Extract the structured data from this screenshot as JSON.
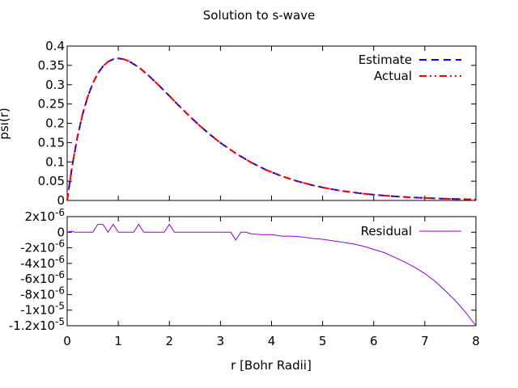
{
  "chart_data": [
    {
      "type": "line",
      "title": "Solution to s-wave",
      "xlabel": "",
      "ylabel": "psi(r)",
      "xlim": [
        0,
        8
      ],
      "ylim": [
        0,
        0.4
      ],
      "yticks": [
        "0",
        "0.05",
        "0.1",
        "0.15",
        "0.2",
        "0.25",
        "0.3",
        "0.35",
        "0.4"
      ],
      "grid": false,
      "legend": "top-right",
      "series": [
        {
          "name": "Estimate",
          "color": "#0000ff",
          "dash": "dashed",
          "x": [
            0,
            0.1,
            0.2,
            0.3,
            0.4,
            0.5,
            0.6,
            0.7,
            0.8,
            0.9,
            1.0,
            1.1,
            1.2,
            1.4,
            1.6,
            1.8,
            2.0,
            2.2,
            2.4,
            2.6,
            2.8,
            3.0,
            3.3,
            3.6,
            3.9,
            4.2,
            4.5,
            4.8,
            5.1,
            5.4,
            5.7,
            6.0,
            6.4,
            6.8,
            7.2,
            7.6,
            8.0
          ],
          "values": [
            0,
            0.0905,
            0.1637,
            0.2222,
            0.2681,
            0.3033,
            0.3293,
            0.3476,
            0.3595,
            0.3659,
            0.3679,
            0.3662,
            0.3614,
            0.3452,
            0.323,
            0.2975,
            0.2707,
            0.2438,
            0.2177,
            0.1931,
            0.1703,
            0.1494,
            0.1221,
            0.0984,
            0.0788,
            0.063,
            0.05,
            0.0395,
            0.031,
            0.0243,
            0.019,
            0.0149,
            0.0106,
            0.0076,
            0.0054,
            0.0038,
            0.0027
          ]
        },
        {
          "name": "Actual",
          "color": "#ff0000",
          "dash": "dash-dot-dot",
          "x": [
            0,
            0.1,
            0.2,
            0.3,
            0.4,
            0.5,
            0.6,
            0.7,
            0.8,
            0.9,
            1.0,
            1.1,
            1.2,
            1.4,
            1.6,
            1.8,
            2.0,
            2.2,
            2.4,
            2.6,
            2.8,
            3.0,
            3.3,
            3.6,
            3.9,
            4.2,
            4.5,
            4.8,
            5.1,
            5.4,
            5.7,
            6.0,
            6.4,
            6.8,
            7.2,
            7.6,
            8.0
          ],
          "values": [
            0,
            0.0905,
            0.1637,
            0.2222,
            0.2681,
            0.3033,
            0.3293,
            0.3476,
            0.3595,
            0.3659,
            0.3679,
            0.3662,
            0.3614,
            0.3452,
            0.323,
            0.2975,
            0.2707,
            0.2438,
            0.2177,
            0.1931,
            0.1703,
            0.1494,
            0.1221,
            0.0984,
            0.0788,
            0.063,
            0.05,
            0.0395,
            0.031,
            0.0243,
            0.019,
            0.0149,
            0.0106,
            0.0076,
            0.0054,
            0.0038,
            0.0027
          ]
        }
      ]
    },
    {
      "type": "line",
      "xlabel": "r [Bohr Radii]",
      "ylabel": "",
      "xlim": [
        0,
        8
      ],
      "ylim": [
        -1.2e-05,
        2e-06
      ],
      "xticks": [
        "0",
        "1",
        "2",
        "3",
        "4",
        "5",
        "6",
        "7",
        "8"
      ],
      "yticks": [
        "2x10-6",
        "0",
        "-2x10-6",
        "-4x10-6",
        "-6x10-6",
        "-8x10-6",
        "-1x10-5",
        "-1.2x10-5"
      ],
      "grid": false,
      "legend": "top-right",
      "series": [
        {
          "name": "Residual",
          "color": "#9400d3",
          "x": [
            0,
            0.05,
            0.1,
            0.15,
            0.5,
            0.6,
            0.7,
            0.8,
            0.9,
            1.0,
            1.3,
            1.4,
            1.5,
            1.9,
            2.0,
            2.1,
            3.2,
            3.3,
            3.4,
            3.5,
            3.6,
            3.8,
            4.0,
            4.2,
            4.4,
            4.6,
            4.8,
            5.0,
            5.2,
            5.4,
            5.6,
            5.8,
            6.0,
            6.2,
            6.4,
            6.6,
            6.8,
            7.0,
            7.2,
            7.4,
            7.6,
            7.8,
            8.0
          ],
          "values": [
            0,
            1e-07,
            1e-07,
            0,
            0,
            1e-06,
            1e-06,
            0,
            1e-06,
            0,
            0,
            1e-06,
            0,
            0,
            1e-06,
            0,
            0,
            -1e-06,
            0,
            0,
            -2e-07,
            -3e-07,
            -3e-07,
            -5e-07,
            -5e-07,
            -6e-07,
            -8e-07,
            -9e-07,
            -1.1e-06,
            -1.3e-06,
            -1.5e-06,
            -1.8e-06,
            -2.2e-06,
            -2.6e-06,
            -3.2e-06,
            -3.8e-06,
            -4.5e-06,
            -5.3e-06,
            -6.3e-06,
            -7.5e-06,
            -8.8e-06,
            -1.03e-05,
            -1.2e-05
          ]
        }
      ]
    }
  ]
}
